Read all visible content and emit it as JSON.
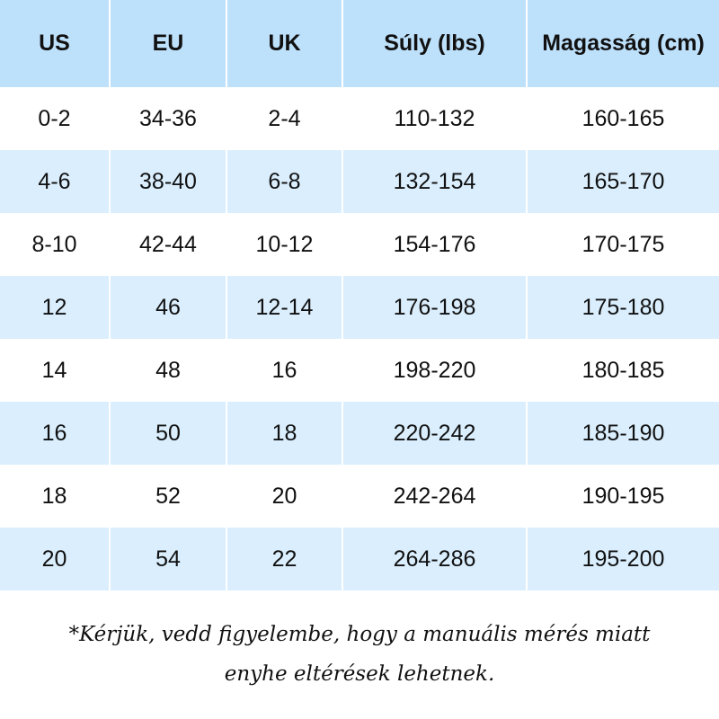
{
  "colors": {
    "header_bg": "#bde0fb",
    "alt_row_bg": "#daeefd",
    "row_bg": "#ffffff"
  },
  "table": {
    "headers": [
      "US",
      "EU",
      "UK",
      "Súly (lbs)",
      "Magasság (cm)"
    ],
    "rows": [
      [
        "0-2",
        "34-36",
        "2-4",
        "110-132",
        "160-165"
      ],
      [
        "4-6",
        "38-40",
        "6-8",
        "132-154",
        "165-170"
      ],
      [
        "8-10",
        "42-44",
        "10-12",
        "154-176",
        "170-175"
      ],
      [
        "12",
        "46",
        "12-14",
        "176-198",
        "175-180"
      ],
      [
        "14",
        "48",
        "16",
        "198-220",
        "180-185"
      ],
      [
        "16",
        "50",
        "18",
        "220-242",
        "185-190"
      ],
      [
        "18",
        "52",
        "20",
        "242-264",
        "190-195"
      ],
      [
        "20",
        "54",
        "22",
        "264-286",
        "195-200"
      ]
    ]
  },
  "note": {
    "line1": "*Kérjük, vedd figyelembe, hogy a manuális mérés miatt",
    "line2": "enyhe eltérések lehetnek."
  }
}
